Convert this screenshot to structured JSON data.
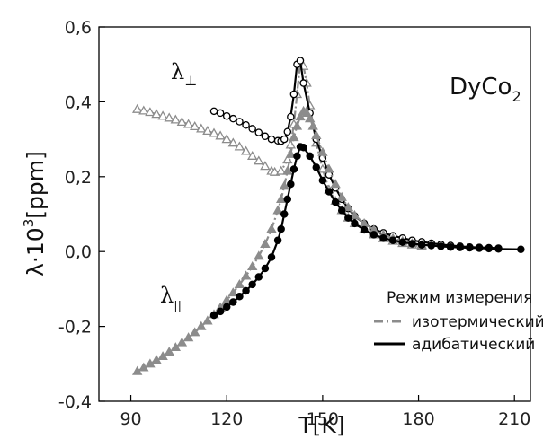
{
  "chart_data": {
    "type": "line",
    "xlabel": "T[K]",
    "ylabel_main": "λ·10",
    "ylabel_sup": "3",
    "ylabel_unit": "[ppm]",
    "xlim": [
      80,
      215
    ],
    "ylim": [
      -0.4,
      0.6
    ],
    "x_ticks": [
      "90",
      "120",
      "150",
      "180",
      "210"
    ],
    "y_ticks": [
      "-0,4",
      "-0,2",
      "0,0",
      "0,2",
      "0,4",
      "0,6"
    ],
    "x_tick_values": [
      90,
      120,
      150,
      180,
      210
    ],
    "y_tick_values": [
      -0.4,
      -0.2,
      0.0,
      0.2,
      0.4,
      0.6
    ],
    "grid": false,
    "annotations": {
      "compound": "DyCo",
      "compound_sub": "2",
      "perp_label": "λ",
      "perp_sub": "⊥",
      "par_label": "λ",
      "par_sub": "||"
    },
    "legend": {
      "title": "Режим измерения",
      "entries": [
        "изотермический",
        "адибатический"
      ],
      "placement": "bottom-right"
    },
    "colors": {
      "isothermal": "#8c8c8c",
      "adiabatic": "#000000"
    },
    "series": [
      {
        "mode": "isothermal",
        "marker": "triangle-open",
        "line": "dash-dot",
        "x": [
          92,
          94,
          96,
          98,
          100,
          102,
          104,
          106,
          108,
          110,
          112,
          114,
          116,
          118,
          120,
          122,
          124,
          126,
          128,
          130,
          132,
          134,
          135,
          137,
          139,
          140,
          141,
          142,
          143,
          144,
          145,
          146,
          148,
          150,
          152,
          154,
          156,
          158,
          160,
          163,
          166,
          169,
          172,
          175,
          178,
          181
        ],
        "y": [
          0.38,
          0.376,
          0.372,
          0.367,
          0.362,
          0.357,
          0.352,
          0.346,
          0.34,
          0.334,
          0.328,
          0.322,
          0.316,
          0.309,
          0.3,
          0.29,
          0.28,
          0.268,
          0.255,
          0.242,
          0.228,
          0.215,
          0.212,
          0.215,
          0.245,
          0.285,
          0.34,
          0.42,
          0.505,
          0.495,
          0.45,
          0.39,
          0.29,
          0.22,
          0.165,
          0.135,
          0.11,
          0.09,
          0.075,
          0.06,
          0.045,
          0.035,
          0.028,
          0.022,
          0.018,
          0.015
        ]
      },
      {
        "mode": "adiabatic",
        "marker": "circle-open",
        "line": "solid",
        "x": [
          116,
          118,
          120,
          122,
          124,
          126,
          128,
          130,
          132,
          134,
          136,
          137,
          138,
          139,
          140,
          141,
          142,
          143,
          144,
          146,
          148,
          150,
          152,
          154,
          156,
          158,
          160,
          163,
          166,
          169,
          172,
          175,
          178,
          181,
          184,
          187,
          190,
          193,
          196,
          199,
          202,
          205
        ],
        "y": [
          0.375,
          0.37,
          0.362,
          0.355,
          0.347,
          0.338,
          0.328,
          0.318,
          0.308,
          0.3,
          0.296,
          0.295,
          0.3,
          0.32,
          0.36,
          0.42,
          0.5,
          0.51,
          0.45,
          0.37,
          0.3,
          0.25,
          0.205,
          0.17,
          0.14,
          0.115,
          0.095,
          0.075,
          0.06,
          0.05,
          0.042,
          0.036,
          0.03,
          0.026,
          0.022,
          0.019,
          0.016,
          0.014,
          0.012,
          0.011,
          0.01,
          0.009
        ]
      },
      {
        "mode": "isothermal",
        "marker": "triangle-filled",
        "line": "dash-dot",
        "x": [
          92,
          94,
          96,
          98,
          100,
          102,
          104,
          106,
          108,
          110,
          112,
          114,
          116,
          118,
          120,
          122,
          124,
          126,
          128,
          130,
          132,
          134,
          136,
          137,
          138,
          139,
          140,
          141,
          142,
          143,
          144,
          145,
          146,
          147,
          148,
          150,
          152,
          154,
          156,
          158,
          160,
          163,
          166,
          169,
          172,
          175,
          178,
          181
        ],
        "y": [
          -0.32,
          -0.31,
          -0.3,
          -0.29,
          -0.28,
          -0.268,
          -0.256,
          -0.243,
          -0.23,
          -0.216,
          -0.2,
          -0.185,
          -0.168,
          -0.15,
          -0.13,
          -0.11,
          -0.088,
          -0.065,
          -0.04,
          -0.012,
          0.02,
          0.06,
          0.11,
          0.14,
          0.175,
          0.215,
          0.26,
          0.305,
          0.335,
          0.36,
          0.375,
          0.37,
          0.355,
          0.335,
          0.31,
          0.265,
          0.22,
          0.18,
          0.145,
          0.118,
          0.097,
          0.075,
          0.058,
          0.045,
          0.035,
          0.028,
          0.022,
          0.018
        ]
      },
      {
        "mode": "adiabatic",
        "marker": "circle-filled",
        "line": "solid",
        "x": [
          116,
          118,
          120,
          122,
          124,
          126,
          128,
          130,
          132,
          134,
          136,
          137,
          138,
          139,
          140,
          141,
          142,
          143,
          144,
          146,
          148,
          150,
          152,
          154,
          156,
          158,
          160,
          163,
          166,
          169,
          172,
          175,
          178,
          181,
          184,
          187,
          190,
          193,
          196,
          199,
          202,
          205,
          212
        ],
        "y": [
          -0.17,
          -0.16,
          -0.148,
          -0.135,
          -0.12,
          -0.105,
          -0.088,
          -0.068,
          -0.045,
          -0.015,
          0.03,
          0.06,
          0.1,
          0.14,
          0.18,
          0.22,
          0.255,
          0.28,
          0.278,
          0.255,
          0.225,
          0.19,
          0.16,
          0.132,
          0.11,
          0.09,
          0.075,
          0.058,
          0.045,
          0.036,
          0.03,
          0.025,
          0.021,
          0.018,
          0.016,
          0.014,
          0.012,
          0.011,
          0.01,
          0.009,
          0.008,
          0.007,
          0.006
        ]
      }
    ]
  }
}
